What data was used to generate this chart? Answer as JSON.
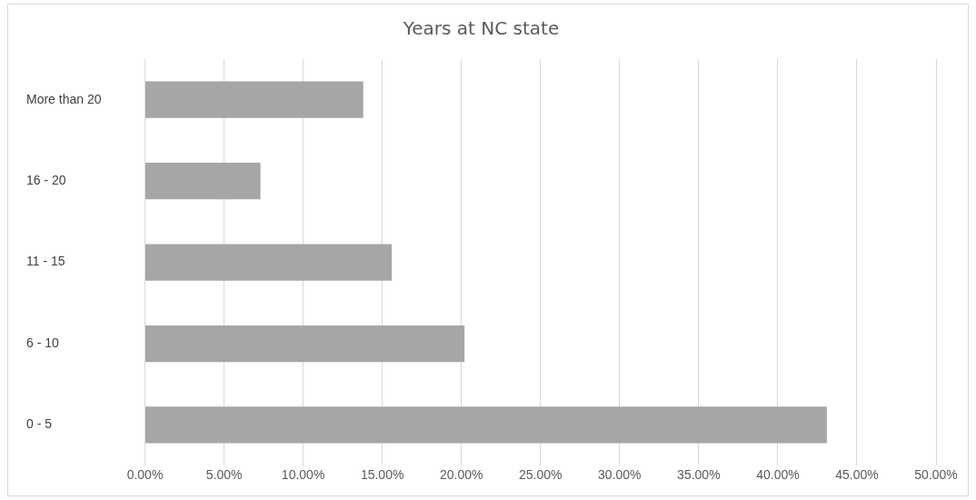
{
  "chart_data": {
    "type": "bar",
    "title": "Years at NC state",
    "orientation": "horizontal",
    "categories": [
      "More than 20",
      "16 - 20",
      "11 - 15",
      "6 - 10",
      "0 - 5"
    ],
    "values": [
      13.8,
      7.3,
      15.6,
      20.2,
      43.1
    ],
    "color": "#a6a6a6",
    "xlim": [
      0,
      50
    ],
    "xticks": [
      {
        "value": 0,
        "label": "0.00%"
      },
      {
        "value": 5,
        "label": "5.00%"
      },
      {
        "value": 10,
        "label": "10.00%"
      },
      {
        "value": 15,
        "label": "15.00%"
      },
      {
        "value": 20,
        "label": "20.00%"
      },
      {
        "value": 25,
        "label": "25.00%"
      },
      {
        "value": 30,
        "label": "30.00%"
      },
      {
        "value": 35,
        "label": "35.00%"
      },
      {
        "value": 40,
        "label": "40.00%"
      },
      {
        "value": 45,
        "label": "45.00%"
      },
      {
        "value": 50,
        "label": "50.00%"
      }
    ],
    "grid": "x",
    "legend": false
  }
}
